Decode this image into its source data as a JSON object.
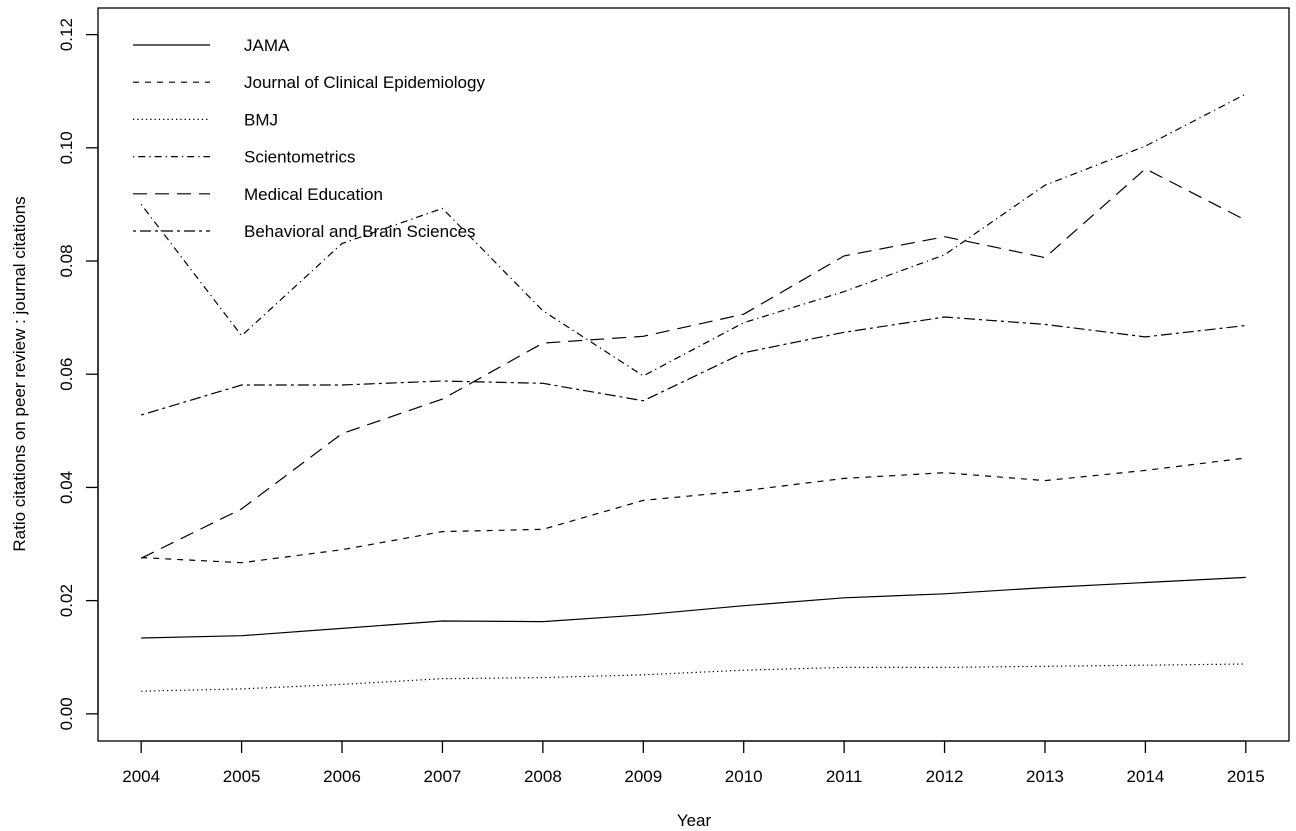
{
  "chart_data": {
    "type": "line",
    "title": "",
    "xlabel": "Year",
    "ylabel": "Ratio citations on peer review : journal citations",
    "x": [
      2004,
      2005,
      2006,
      2007,
      2008,
      2009,
      2010,
      2011,
      2012,
      2013,
      2014,
      2015
    ],
    "xlim": [
      2003.57,
      2015.43
    ],
    "ylim": [
      -0.0048,
      0.1247
    ],
    "yticks": [
      "0.00",
      "0.02",
      "0.04",
      "0.06",
      "0.08",
      "0.10",
      "0.12"
    ],
    "ytick_values": [
      0,
      0.02,
      0.04,
      0.06,
      0.08,
      0.1,
      0.12
    ],
    "legend_position": "top-left",
    "grid": false,
    "series": [
      {
        "name": "JAMA",
        "dash": "solid",
        "values": [
          0.0134,
          0.0138,
          0.0151,
          0.0164,
          0.0163,
          0.0175,
          0.0191,
          0.0205,
          0.0212,
          0.0223,
          0.0232,
          0.0241
        ]
      },
      {
        "name": "Journal of Clinical Epidemiology",
        "dash": "dashed",
        "values": [
          0.0276,
          0.0267,
          0.029,
          0.0322,
          0.0326,
          0.0377,
          0.0394,
          0.0416,
          0.0426,
          0.0412,
          0.043,
          0.0452
        ]
      },
      {
        "name": "BMJ",
        "dash": "dotted",
        "values": [
          0.004,
          0.0044,
          0.0052,
          0.0062,
          0.0064,
          0.0069,
          0.0077,
          0.0082,
          0.0082,
          0.0084,
          0.0086,
          0.0088
        ]
      },
      {
        "name": "Scientometrics",
        "dash": "dotdash",
        "values": [
          0.09,
          0.0668,
          0.0831,
          0.0893,
          0.0712,
          0.0597,
          0.0691,
          0.0746,
          0.0811,
          0.0934,
          0.1003,
          0.1095
        ]
      },
      {
        "name": "Medical Education",
        "dash": "longdash",
        "values": [
          0.0275,
          0.0362,
          0.0495,
          0.0556,
          0.0655,
          0.0667,
          0.0706,
          0.0809,
          0.0843,
          0.0806,
          0.0963,
          0.0872
        ]
      },
      {
        "name": "Behavioral and Brain Sciences",
        "dash": "twodash",
        "values": [
          0.0528,
          0.0581,
          0.0581,
          0.0588,
          0.0584,
          0.0553,
          0.0638,
          0.0674,
          0.0701,
          0.0688,
          0.0666,
          0.0686
        ]
      }
    ]
  }
}
